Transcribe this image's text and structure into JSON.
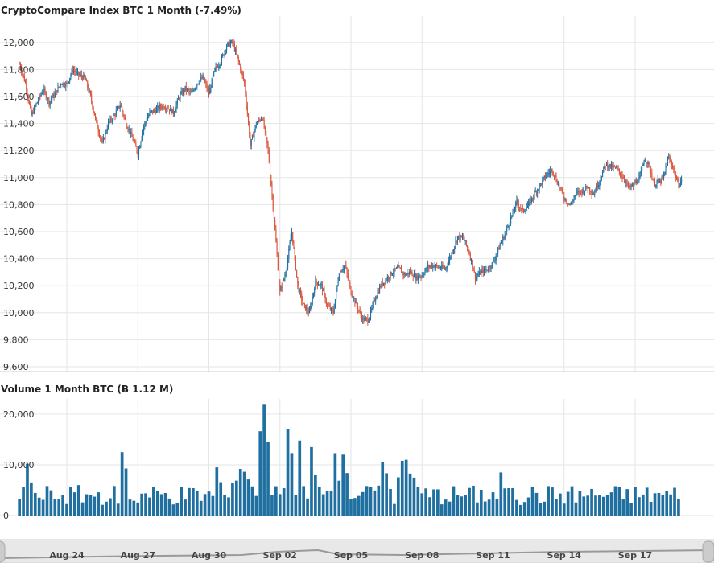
{
  "chart_data": [
    {
      "type": "candlestick",
      "title": "CryptoCompare Index BTC 1 Month (-7.49%)",
      "ylim": [
        9600,
        12100
      ],
      "y_ticks": [
        "12,000",
        "11,800",
        "11,600",
        "11,400",
        "11,200",
        "11,000",
        "10,800",
        "10,600",
        "10,400",
        "10,200",
        "10,000",
        "9,800",
        "9,600"
      ],
      "y_tick_values": [
        12000,
        11800,
        11600,
        11400,
        11200,
        11000,
        10800,
        10600,
        10400,
        10200,
        10000,
        9800,
        9600
      ],
      "x_range": [
        "Aug 22",
        "Sep 19 23:00"
      ],
      "grid": true,
      "up_color": "#1f6fa0",
      "down_color": "#d9533b",
      "series": [
        {
          "day": "Aug 22",
          "close_path": [
            11840,
            11700,
            11460,
            11560,
            11650
          ]
        },
        {
          "day": "Aug 23",
          "close_path": [
            11650,
            11560,
            11620,
            11700,
            11690
          ]
        },
        {
          "day": "Aug 24",
          "close_path": [
            11690,
            11800,
            11760,
            11740,
            11600
          ]
        },
        {
          "day": "Aug 25",
          "close_path": [
            11600,
            11400,
            11250,
            11400,
            11460
          ]
        },
        {
          "day": "Aug 26",
          "close_path": [
            11460,
            11540,
            11400,
            11300,
            11180
          ]
        },
        {
          "day": "Aug 27",
          "close_path": [
            11180,
            11380,
            11480,
            11500,
            11530
          ]
        },
        {
          "day": "Aug 28",
          "close_path": [
            11530,
            11520,
            11480,
            11600,
            11660
          ]
        },
        {
          "day": "Aug 29",
          "close_path": [
            11660,
            11620,
            11700,
            11740,
            11620
          ]
        },
        {
          "day": "Aug 30",
          "close_path": [
            11620,
            11800,
            11860,
            11980,
            12000
          ]
        },
        {
          "day": "Sep 01",
          "close_path": [
            12000,
            11860,
            11700,
            11240,
            11400
          ]
        },
        {
          "day": "Sep 02",
          "close_path": [
            11400,
            11450,
            11200,
            10700,
            10150
          ]
        },
        {
          "day": "Sep 03",
          "close_path": [
            10150,
            10300,
            10600,
            10200,
            10050
          ]
        },
        {
          "day": "Sep 04",
          "close_path": [
            10050,
            10000,
            10230,
            10200,
            10050
          ]
        },
        {
          "day": "Sep 05",
          "close_path": [
            10050,
            10000,
            10300,
            10350,
            10150
          ]
        },
        {
          "day": "Sep 06",
          "close_path": [
            10150,
            10050,
            9950,
            9950,
            10100
          ]
        },
        {
          "day": "Sep 07",
          "close_path": [
            10100,
            10200,
            10250,
            10300,
            10330
          ]
        },
        {
          "day": "Sep 08",
          "close_path": [
            10330,
            10280,
            10300,
            10260,
            10280
          ]
        },
        {
          "day": "Sep 09",
          "close_path": [
            10280,
            10340,
            10350,
            10330,
            10330
          ]
        },
        {
          "day": "Sep 10",
          "close_path": [
            10330,
            10440,
            10560,
            10550,
            10440
          ]
        },
        {
          "day": "Sep 11",
          "close_path": [
            10440,
            10260,
            10300,
            10320,
            10370
          ]
        },
        {
          "day": "Sep 12",
          "close_path": [
            10370,
            10480,
            10580,
            10700,
            10820
          ]
        },
        {
          "day": "Sep 13",
          "close_path": [
            10820,
            10750,
            10800,
            10880,
            10950
          ]
        },
        {
          "day": "Sep 14",
          "close_path": [
            10950,
            11020,
            11060,
            10950,
            10850
          ]
        },
        {
          "day": "Sep 15",
          "close_path": [
            10850,
            10800,
            10880,
            10900,
            10930
          ]
        },
        {
          "day": "Sep 16",
          "close_path": [
            10930,
            10880,
            10980,
            11100,
            11080
          ]
        },
        {
          "day": "Sep 17",
          "close_path": [
            11080,
            11060,
            11000,
            10920,
            10960
          ]
        }
      ]
    },
    {
      "type": "bar",
      "title": "Volume 1 Month BTC (Ƀ 1.12 M)",
      "ylim": [
        0,
        23000
      ],
      "y_ticks": [
        "20,000",
        "10,000",
        "0"
      ],
      "y_tick_values": [
        20000,
        10000,
        0
      ],
      "color": "#1f6fa0",
      "peaks": [
        {
          "x": "Aug 22",
          "value": 10200
        },
        {
          "x": "Aug 26",
          "value": 12500
        },
        {
          "x": "Aug 30",
          "value": 9500
        },
        {
          "x": "Sep 01",
          "value": 9200
        },
        {
          "x": "Sep 02",
          "value": 22000
        },
        {
          "x": "Sep 03",
          "value": 17000
        },
        {
          "x": "Sep 04",
          "value": 13500
        },
        {
          "x": "Sep 05",
          "value": 12300
        },
        {
          "x": "Sep 07",
          "value": 10500
        },
        {
          "x": "Sep 08",
          "value": 11000
        },
        {
          "x": "Sep 12",
          "value": 8500
        }
      ],
      "baseline_low": 2000,
      "baseline_high": 6000
    }
  ],
  "x_axis": {
    "labels": [
      "Aug 24",
      "Aug 27",
      "Aug 30",
      "Sep 02",
      "Sep 05",
      "Sep 08",
      "Sep 11",
      "Sep 14",
      "Sep 17"
    ]
  }
}
